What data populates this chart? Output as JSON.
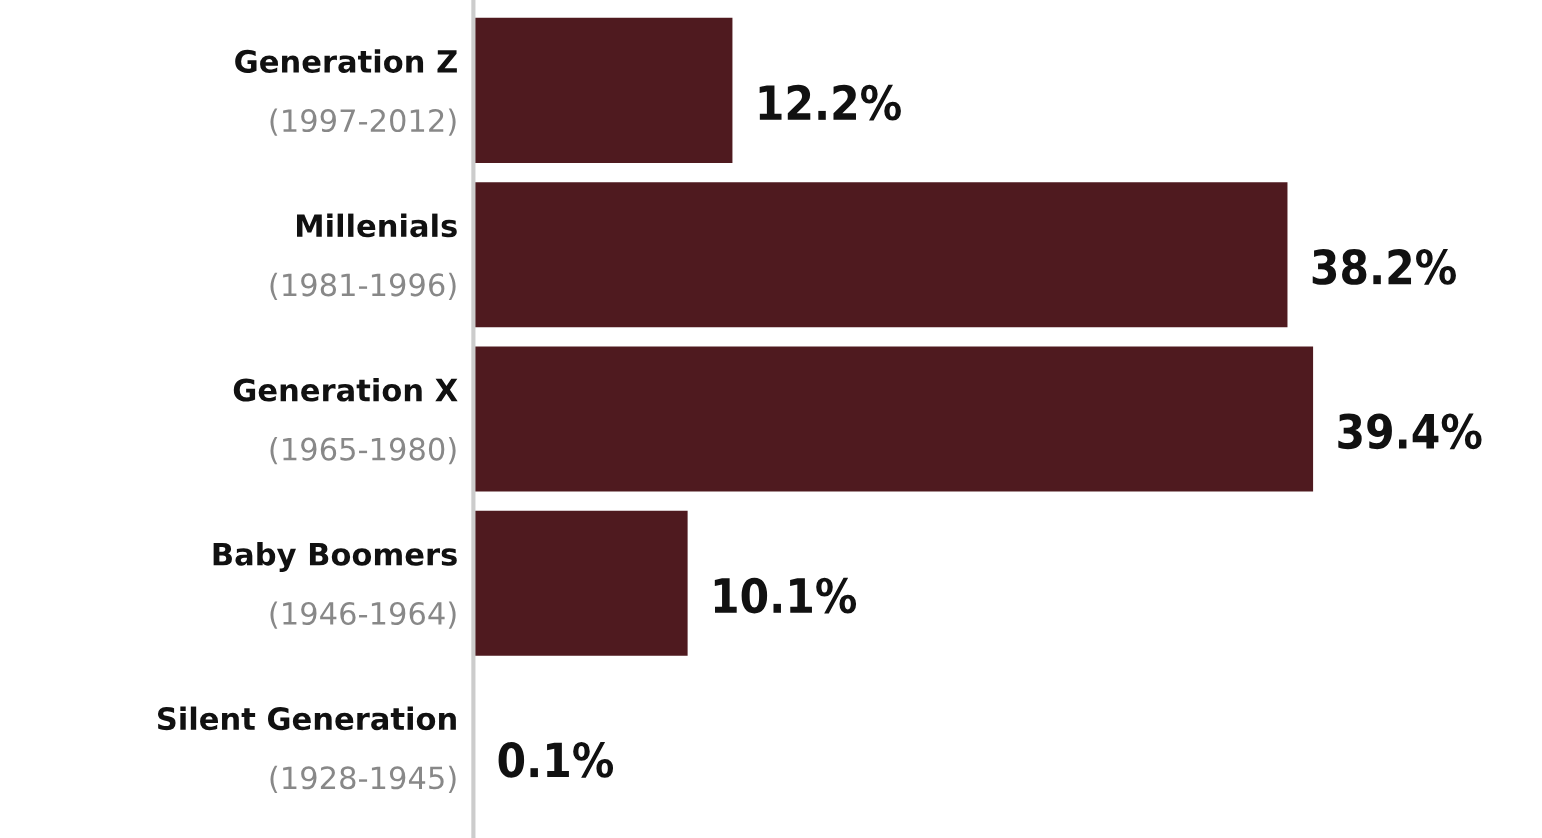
{
  "chart_data": {
    "type": "bar",
    "orientation": "horizontal",
    "categories": [
      "Generation Z\n(1997-2012)",
      "Millenials\n(1981-1996)",
      "Generation X\n(1965-1980)",
      "Baby Boomers\n(1946-1964)",
      "Silent Generation\n(1928-1945)"
    ],
    "values": [
      12.2,
      38.2,
      39.4,
      10.1,
      0.1
    ],
    "value_labels": [
      "12.2%",
      "38.2%",
      "39.4%",
      "10.1%",
      "0.1%"
    ],
    "color": "#4f1a1f"
  }
}
